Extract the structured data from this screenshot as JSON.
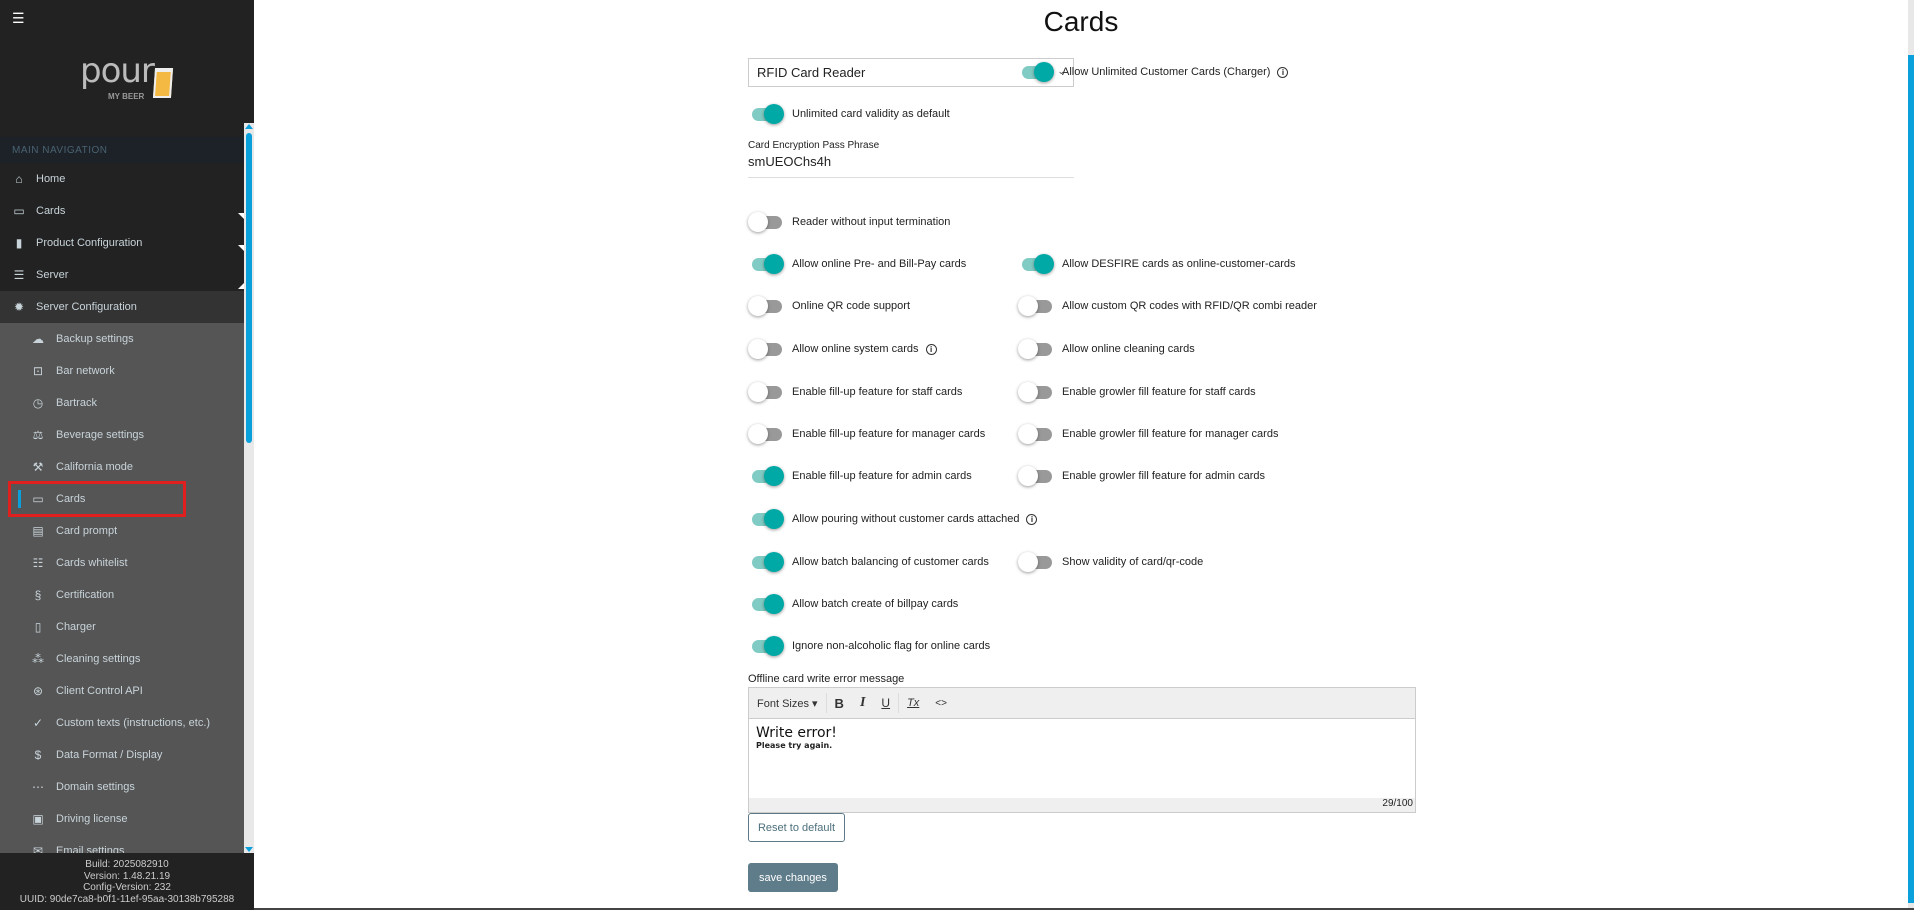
{
  "sidebar": {
    "menu_icon": "hamburger-icon",
    "logo": {
      "text": "pour",
      "sub": "MY BEER"
    },
    "section_header": "MAIN NAVIGATION",
    "top_items": [
      {
        "label": "Home",
        "icon": "home-icon"
      },
      {
        "label": "Cards",
        "icon": "credit-card-icon"
      },
      {
        "label": "Product Configuration",
        "icon": "keg-icon"
      },
      {
        "label": "Server",
        "icon": "server-icon"
      },
      {
        "label": "Server Configuration",
        "icon": "gear-icon"
      }
    ],
    "sub_items": [
      {
        "label": "Backup settings",
        "icon": "cloud-upload-icon"
      },
      {
        "label": "Bar network",
        "icon": "cast-icon"
      },
      {
        "label": "Bartrack",
        "icon": "gauge-icon"
      },
      {
        "label": "Beverage settings",
        "icon": "scale-icon"
      },
      {
        "label": "California mode",
        "icon": "gavel-icon"
      },
      {
        "label": "Cards",
        "icon": "credit-card-icon",
        "selected": true
      },
      {
        "label": "Card prompt",
        "icon": "message-icon"
      },
      {
        "label": "Cards whitelist",
        "icon": "list-icon"
      },
      {
        "label": "Certification",
        "icon": "section-icon"
      },
      {
        "label": "Charger",
        "icon": "tablet-icon"
      },
      {
        "label": "Cleaning settings",
        "icon": "drops-icon"
      },
      {
        "label": "Client Control API",
        "icon": "api-icon"
      },
      {
        "label": "Custom texts (instructions, etc.)",
        "icon": "check-icon"
      },
      {
        "label": "Data Format / Display",
        "icon": "dollar-icon"
      },
      {
        "label": "Domain settings",
        "icon": "dots-icon"
      },
      {
        "label": "Driving license",
        "icon": "id-card-icon"
      },
      {
        "label": "Email settings",
        "icon": "mail-icon"
      }
    ],
    "footer": {
      "build": "Build: 2025082910",
      "version": "Version: 1.48.21.19",
      "config_version": "Config-Version: 232",
      "uuid": "UUID: 90de7ca8-b0f1-11ef-95aa-30138b795288"
    }
  },
  "main": {
    "title": "Cards",
    "reader_select": "RFID Card Reader",
    "pass_phrase": {
      "label": "Card Encryption Pass Phrase",
      "value": "smUEOChs4h"
    },
    "toggles": [
      {
        "label": "Allow Unlimited Customer Cards (Charger)",
        "on": true,
        "info": true
      },
      {
        "label": "Unlimited card validity as default",
        "on": true
      },
      {
        "label": "Reader without input termination",
        "on": false
      },
      {
        "label": "Allow online Pre- and Bill-Pay cards",
        "on": true
      },
      {
        "label": "Allow DESFIRE cards as online-customer-cards",
        "on": true
      },
      {
        "label": "Online QR code support",
        "on": false
      },
      {
        "label": "Allow custom QR codes with RFID/QR combi reader",
        "on": false
      },
      {
        "label": "Allow online system cards",
        "on": false,
        "info": true
      },
      {
        "label": "Allow online cleaning cards",
        "on": false
      },
      {
        "label": "Enable fill-up feature for staff cards",
        "on": false
      },
      {
        "label": "Enable growler fill feature for staff cards",
        "on": false
      },
      {
        "label": "Enable fill-up feature for manager cards",
        "on": false
      },
      {
        "label": "Enable growler fill feature for manager cards",
        "on": false
      },
      {
        "label": "Enable fill-up feature for admin cards",
        "on": true
      },
      {
        "label": "Enable growler fill feature for admin cards",
        "on": false
      },
      {
        "label": "Allow pouring without customer cards attached",
        "on": true,
        "info": true
      },
      {
        "label": "Allow batch balancing of customer cards",
        "on": true
      },
      {
        "label": "Show validity of card/qr-code",
        "on": false
      },
      {
        "label": "Allow batch create of billpay cards",
        "on": true
      },
      {
        "label": "Ignore non-alcoholic flag for online cards",
        "on": true
      }
    ],
    "editor": {
      "label": "Offline card write error message",
      "font_sizes": "Font Sizes ▾",
      "bold": "B",
      "italic": "I",
      "underline": "U",
      "clear": "Tx",
      "code": "<>",
      "line1": "Write error!",
      "line2": "Please try again.",
      "counter": "29/100"
    },
    "reset_label": "Reset to default",
    "save_label": "save changes"
  },
  "colors": {
    "accent": "#00a9a5",
    "sidebar": "#222222",
    "selected_outline": "#e0201f",
    "save": "#5e7c89",
    "scroll": "#0aa0dc"
  }
}
